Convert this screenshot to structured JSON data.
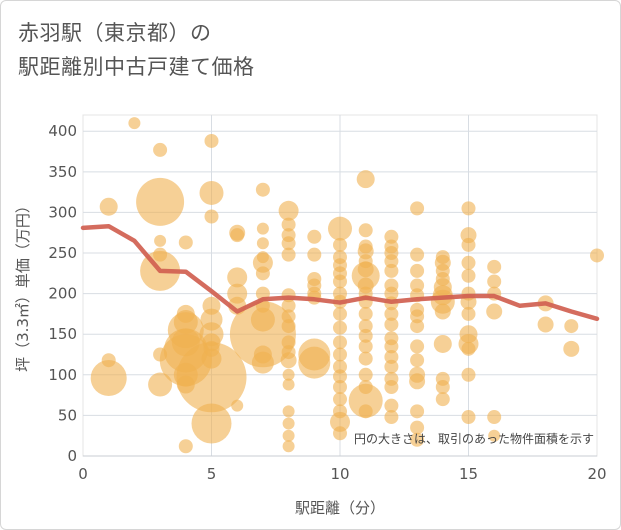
{
  "chart_title": {
    "line1": "赤羽駅（東京都）の",
    "line2": "駅距離別中古戸建て価格"
  },
  "chart_data": {
    "type": "scatter",
    "xlabel": "駅距離（分）",
    "ylabel": "坪（3.3㎡）単価（万円）",
    "xlim": [
      0,
      20
    ],
    "ylim": [
      0,
      420
    ],
    "x_ticks": [
      0,
      5,
      10,
      15,
      20
    ],
    "y_ticks": [
      0,
      50,
      100,
      150,
      200,
      250,
      300,
      350,
      400
    ],
    "grid": true,
    "annotation": "円の大きさは、取引のあった物件面積を示す",
    "bubble_color": "#f0b050",
    "trend_color": "#d06050",
    "points": [
      {
        "x": 1,
        "y": 307,
        "s": 9
      },
      {
        "x": 1,
        "y": 96,
        "s": 18
      },
      {
        "x": 1,
        "y": 118,
        "s": 7
      },
      {
        "x": 2,
        "y": 410,
        "s": 6
      },
      {
        "x": 3,
        "y": 313,
        "s": 24
      },
      {
        "x": 3,
        "y": 377,
        "s": 7
      },
      {
        "x": 3,
        "y": 265,
        "s": 6
      },
      {
        "x": 3,
        "y": 248,
        "s": 7
      },
      {
        "x": 3,
        "y": 228,
        "s": 20
      },
      {
        "x": 3,
        "y": 88,
        "s": 12
      },
      {
        "x": 3,
        "y": 125,
        "s": 7
      },
      {
        "x": 4,
        "y": 263,
        "s": 7
      },
      {
        "x": 4,
        "y": 175,
        "s": 9
      },
      {
        "x": 4,
        "y": 165,
        "s": 12
      },
      {
        "x": 4,
        "y": 155,
        "s": 18
      },
      {
        "x": 4,
        "y": 140,
        "s": 14
      },
      {
        "x": 4,
        "y": 130,
        "s": 22
      },
      {
        "x": 4,
        "y": 118,
        "s": 26
      },
      {
        "x": 4,
        "y": 100,
        "s": 12
      },
      {
        "x": 4,
        "y": 88,
        "s": 9
      },
      {
        "x": 4,
        "y": 12,
        "s": 7
      },
      {
        "x": 5,
        "y": 388,
        "s": 7
      },
      {
        "x": 5,
        "y": 324,
        "s": 12
      },
      {
        "x": 5,
        "y": 295,
        "s": 7
      },
      {
        "x": 5,
        "y": 185,
        "s": 9
      },
      {
        "x": 5,
        "y": 168,
        "s": 11
      },
      {
        "x": 5,
        "y": 150,
        "s": 12
      },
      {
        "x": 5,
        "y": 140,
        "s": 9
      },
      {
        "x": 5,
        "y": 132,
        "s": 8
      },
      {
        "x": 5,
        "y": 120,
        "s": 10
      },
      {
        "x": 5,
        "y": 97,
        "s": 35
      },
      {
        "x": 5,
        "y": 40,
        "s": 20
      },
      {
        "x": 6,
        "y": 275,
        "s": 8
      },
      {
        "x": 6,
        "y": 272,
        "s": 7
      },
      {
        "x": 6,
        "y": 220,
        "s": 10
      },
      {
        "x": 6,
        "y": 200,
        "s": 10
      },
      {
        "x": 6,
        "y": 185,
        "s": 9
      },
      {
        "x": 6,
        "y": 62,
        "s": 6
      },
      {
        "x": 7,
        "y": 328,
        "s": 7
      },
      {
        "x": 7,
        "y": 280,
        "s": 6
      },
      {
        "x": 7,
        "y": 262,
        "s": 6
      },
      {
        "x": 7,
        "y": 245,
        "s": 6
      },
      {
        "x": 7,
        "y": 238,
        "s": 10
      },
      {
        "x": 7,
        "y": 225,
        "s": 7
      },
      {
        "x": 7,
        "y": 200,
        "s": 7
      },
      {
        "x": 7,
        "y": 185,
        "s": 7
      },
      {
        "x": 7,
        "y": 168,
        "s": 12
      },
      {
        "x": 7,
        "y": 150,
        "s": 33
      },
      {
        "x": 7,
        "y": 125,
        "s": 9
      },
      {
        "x": 7,
        "y": 115,
        "s": 11
      },
      {
        "x": 8,
        "y": 302,
        "s": 10
      },
      {
        "x": 8,
        "y": 285,
        "s": 7
      },
      {
        "x": 8,
        "y": 272,
        "s": 7
      },
      {
        "x": 8,
        "y": 262,
        "s": 7
      },
      {
        "x": 8,
        "y": 248,
        "s": 7
      },
      {
        "x": 8,
        "y": 198,
        "s": 7
      },
      {
        "x": 8,
        "y": 185,
        "s": 7
      },
      {
        "x": 8,
        "y": 172,
        "s": 7
      },
      {
        "x": 8,
        "y": 160,
        "s": 7
      },
      {
        "x": 8,
        "y": 140,
        "s": 7
      },
      {
        "x": 8,
        "y": 128,
        "s": 7
      },
      {
        "x": 8,
        "y": 118,
        "s": 8
      },
      {
        "x": 8,
        "y": 100,
        "s": 6
      },
      {
        "x": 8,
        "y": 88,
        "s": 6
      },
      {
        "x": 8,
        "y": 55,
        "s": 6
      },
      {
        "x": 8,
        "y": 40,
        "s": 6
      },
      {
        "x": 8,
        "y": 25,
        "s": 6
      },
      {
        "x": 8,
        "y": 12,
        "s": 6
      },
      {
        "x": 9,
        "y": 270,
        "s": 7
      },
      {
        "x": 9,
        "y": 248,
        "s": 7
      },
      {
        "x": 9,
        "y": 218,
        "s": 7
      },
      {
        "x": 9,
        "y": 210,
        "s": 7
      },
      {
        "x": 9,
        "y": 200,
        "s": 7
      },
      {
        "x": 9,
        "y": 195,
        "s": 7
      },
      {
        "x": 9,
        "y": 125,
        "s": 16
      },
      {
        "x": 9,
        "y": 115,
        "s": 16
      },
      {
        "x": 10,
        "y": 280,
        "s": 12
      },
      {
        "x": 10,
        "y": 260,
        "s": 7
      },
      {
        "x": 10,
        "y": 245,
        "s": 7
      },
      {
        "x": 10,
        "y": 235,
        "s": 7
      },
      {
        "x": 10,
        "y": 225,
        "s": 7
      },
      {
        "x": 10,
        "y": 215,
        "s": 7
      },
      {
        "x": 10,
        "y": 200,
        "s": 7
      },
      {
        "x": 10,
        "y": 190,
        "s": 7
      },
      {
        "x": 10,
        "y": 175,
        "s": 7
      },
      {
        "x": 10,
        "y": 158,
        "s": 7
      },
      {
        "x": 10,
        "y": 140,
        "s": 7
      },
      {
        "x": 10,
        "y": 125,
        "s": 7
      },
      {
        "x": 10,
        "y": 110,
        "s": 7
      },
      {
        "x": 10,
        "y": 98,
        "s": 7
      },
      {
        "x": 10,
        "y": 85,
        "s": 7
      },
      {
        "x": 10,
        "y": 70,
        "s": 7
      },
      {
        "x": 10,
        "y": 55,
        "s": 7
      },
      {
        "x": 10,
        "y": 42,
        "s": 10
      },
      {
        "x": 10,
        "y": 28,
        "s": 7
      },
      {
        "x": 11,
        "y": 341,
        "s": 9
      },
      {
        "x": 11,
        "y": 278,
        "s": 7
      },
      {
        "x": 11,
        "y": 258,
        "s": 7
      },
      {
        "x": 11,
        "y": 252,
        "s": 8
      },
      {
        "x": 11,
        "y": 240,
        "s": 7
      },
      {
        "x": 11,
        "y": 230,
        "s": 8
      },
      {
        "x": 11,
        "y": 222,
        "s": 14
      },
      {
        "x": 11,
        "y": 210,
        "s": 8
      },
      {
        "x": 11,
        "y": 200,
        "s": 7
      },
      {
        "x": 11,
        "y": 190,
        "s": 7
      },
      {
        "x": 11,
        "y": 175,
        "s": 7
      },
      {
        "x": 11,
        "y": 160,
        "s": 7
      },
      {
        "x": 11,
        "y": 148,
        "s": 7
      },
      {
        "x": 11,
        "y": 135,
        "s": 7
      },
      {
        "x": 11,
        "y": 120,
        "s": 7
      },
      {
        "x": 11,
        "y": 100,
        "s": 7
      },
      {
        "x": 11,
        "y": 85,
        "s": 7
      },
      {
        "x": 11,
        "y": 68,
        "s": 17
      },
      {
        "x": 11,
        "y": 55,
        "s": 7
      },
      {
        "x": 12,
        "y": 270,
        "s": 7
      },
      {
        "x": 12,
        "y": 258,
        "s": 7
      },
      {
        "x": 12,
        "y": 250,
        "s": 7
      },
      {
        "x": 12,
        "y": 240,
        "s": 7
      },
      {
        "x": 12,
        "y": 228,
        "s": 7
      },
      {
        "x": 12,
        "y": 210,
        "s": 7
      },
      {
        "x": 12,
        "y": 200,
        "s": 7
      },
      {
        "x": 12,
        "y": 188,
        "s": 7
      },
      {
        "x": 12,
        "y": 175,
        "s": 7
      },
      {
        "x": 12,
        "y": 162,
        "s": 7
      },
      {
        "x": 12,
        "y": 145,
        "s": 7
      },
      {
        "x": 12,
        "y": 135,
        "s": 7
      },
      {
        "x": 12,
        "y": 122,
        "s": 7
      },
      {
        "x": 12,
        "y": 110,
        "s": 7
      },
      {
        "x": 12,
        "y": 95,
        "s": 7
      },
      {
        "x": 12,
        "y": 85,
        "s": 7
      },
      {
        "x": 12,
        "y": 62,
        "s": 7
      },
      {
        "x": 12,
        "y": 48,
        "s": 7
      },
      {
        "x": 13,
        "y": 305,
        "s": 7
      },
      {
        "x": 13,
        "y": 248,
        "s": 7
      },
      {
        "x": 13,
        "y": 228,
        "s": 7
      },
      {
        "x": 13,
        "y": 210,
        "s": 7
      },
      {
        "x": 13,
        "y": 198,
        "s": 7
      },
      {
        "x": 13,
        "y": 180,
        "s": 7
      },
      {
        "x": 13,
        "y": 172,
        "s": 7
      },
      {
        "x": 13,
        "y": 160,
        "s": 7
      },
      {
        "x": 13,
        "y": 135,
        "s": 7
      },
      {
        "x": 13,
        "y": 118,
        "s": 7
      },
      {
        "x": 13,
        "y": 100,
        "s": 8
      },
      {
        "x": 13,
        "y": 92,
        "s": 8
      },
      {
        "x": 13,
        "y": 55,
        "s": 7
      },
      {
        "x": 13,
        "y": 35,
        "s": 7
      },
      {
        "x": 13,
        "y": 20,
        "s": 7
      },
      {
        "x": 14,
        "y": 245,
        "s": 7
      },
      {
        "x": 14,
        "y": 238,
        "s": 8
      },
      {
        "x": 14,
        "y": 228,
        "s": 7
      },
      {
        "x": 14,
        "y": 218,
        "s": 7
      },
      {
        "x": 14,
        "y": 208,
        "s": 9
      },
      {
        "x": 14,
        "y": 198,
        "s": 10
      },
      {
        "x": 14,
        "y": 190,
        "s": 12
      },
      {
        "x": 14,
        "y": 178,
        "s": 8
      },
      {
        "x": 14,
        "y": 138,
        "s": 9
      },
      {
        "x": 14,
        "y": 95,
        "s": 7
      },
      {
        "x": 14,
        "y": 85,
        "s": 7
      },
      {
        "x": 14,
        "y": 70,
        "s": 7
      },
      {
        "x": 15,
        "y": 305,
        "s": 7
      },
      {
        "x": 15,
        "y": 272,
        "s": 8
      },
      {
        "x": 15,
        "y": 260,
        "s": 7
      },
      {
        "x": 15,
        "y": 238,
        "s": 7
      },
      {
        "x": 15,
        "y": 222,
        "s": 7
      },
      {
        "x": 15,
        "y": 200,
        "s": 7
      },
      {
        "x": 15,
        "y": 190,
        "s": 8
      },
      {
        "x": 15,
        "y": 175,
        "s": 7
      },
      {
        "x": 15,
        "y": 150,
        "s": 9
      },
      {
        "x": 15,
        "y": 138,
        "s": 10
      },
      {
        "x": 15,
        "y": 132,
        "s": 7
      },
      {
        "x": 15,
        "y": 100,
        "s": 7
      },
      {
        "x": 15,
        "y": 48,
        "s": 7
      },
      {
        "x": 16,
        "y": 233,
        "s": 7
      },
      {
        "x": 16,
        "y": 215,
        "s": 7
      },
      {
        "x": 16,
        "y": 200,
        "s": 7
      },
      {
        "x": 16,
        "y": 178,
        "s": 8
      },
      {
        "x": 16,
        "y": 48,
        "s": 7
      },
      {
        "x": 16,
        "y": 25,
        "s": 6
      },
      {
        "x": 18,
        "y": 188,
        "s": 8
      },
      {
        "x": 18,
        "y": 162,
        "s": 8
      },
      {
        "x": 19,
        "y": 160,
        "s": 7
      },
      {
        "x": 19,
        "y": 132,
        "s": 8
      },
      {
        "x": 20,
        "y": 247,
        "s": 7
      }
    ],
    "trend": {
      "x": [
        0,
        1,
        2,
        3,
        4,
        5,
        6,
        7,
        8,
        9,
        10,
        11,
        12,
        13,
        14,
        15,
        16,
        17,
        18,
        19,
        20
      ],
      "y": [
        281,
        283,
        265,
        228,
        227,
        203,
        178,
        193,
        195,
        193,
        189,
        195,
        190,
        193,
        195,
        197,
        197,
        185,
        188,
        178,
        169
      ]
    }
  }
}
